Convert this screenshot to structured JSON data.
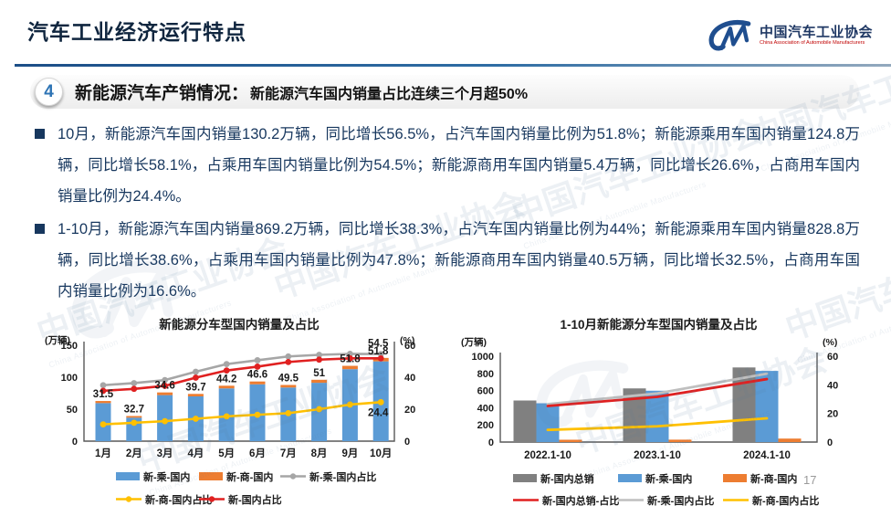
{
  "header": {
    "title": "汽车工业经济运行特点",
    "logo": {
      "org_cn": "中国汽车工业协会",
      "org_en": "China Association of Automobile Manufacturers"
    }
  },
  "section": {
    "number": "4",
    "title": "新能源汽车产销情况：",
    "subtitle": "新能源汽车国内销量占比连续三个月超50%"
  },
  "bullets": [
    {
      "text": "10月，新能源汽车国内销量130.2万辆，同比增长56.5%，占汽车国内销量比例为51.8%；新能源乘用车国内销量124.8万辆，同比增长58.1%，占乘用车国内销量比例为54.5%；新能源商用车国内销量5.4万辆，同比增长26.6%，占商用车国内销量比例为24.4%。"
    },
    {
      "text": "1-10月，新能源汽车国内销量869.2万辆，同比增长38.3%，占汽车国内销量比例为44%；新能源乘用车国内销量828.8万辆，同比增长38.6%，占乘用车国内销量比例为47.8%；新能源商用车国内销量40.5万辆，同比增长32.5%，占商用车国内销量比例为16.6%。"
    }
  ],
  "page_number": "17",
  "watermark": {
    "text_cn": "中国汽车工业协会",
    "text_en": "China Association of Automobile Manufacturers"
  },
  "colors": {
    "accent_blue": "#2E74B5",
    "navy_text": "#17375E",
    "bar_blue": "#5B9BD5",
    "bar_orange": "#ED7D31",
    "bar_gray": "#808080",
    "line_red": "#E02020",
    "line_gray": "#A6A6A6",
    "line_yellow": "#FFC000"
  },
  "chart_data": [
    {
      "id": "monthly",
      "type": "bar+line",
      "title": "新能源分车型国内销量及占比",
      "unit_left": "(万辆)",
      "unit_right": "(%)",
      "categories": [
        "1月",
        "2月",
        "3月",
        "4月",
        "5月",
        "6月",
        "7月",
        "8月",
        "9月",
        "10月"
      ],
      "left_axis": {
        "max": 150,
        "ticks": [
          0,
          50,
          100,
          150
        ]
      },
      "right_axis": {
        "max": 60,
        "ticks": [
          0,
          20,
          40,
          60
        ]
      },
      "bar_mode": "stacked",
      "bar_series": [
        {
          "name": "新-乘-国内",
          "color": "#5B9BD5",
          "values": [
            59.5,
            36.7,
            72,
            70,
            82.5,
            88.9,
            83.9,
            91.3,
            112.6,
            124.8
          ]
        },
        {
          "name": "新-商-国内",
          "color": "#ED7D31",
          "values": [
            3.3,
            2.6,
            4.2,
            3.9,
            4.2,
            4.4,
            4.0,
            4.7,
            5.2,
            5.4
          ]
        }
      ],
      "line_series": [
        {
          "name": "新-乘-国内占比",
          "color": "#A6A6A6",
          "values": [
            35,
            36.3,
            38.2,
            43.4,
            48.2,
            50.6,
            53,
            54,
            54.6,
            54.5
          ],
          "point_labels": [
            null,
            null,
            null,
            null,
            null,
            null,
            null,
            null,
            null,
            "54.5"
          ],
          "label_pos": "above"
        },
        {
          "name": "新-商-国内占比",
          "color": "#FFC000",
          "values": [
            10.5,
            11.5,
            12.5,
            14,
            15.5,
            16.5,
            17.5,
            20,
            22.9,
            24.4
          ],
          "point_labels": [
            null,
            null,
            null,
            null,
            null,
            null,
            null,
            null,
            null,
            "24.4"
          ],
          "label_pos": "below"
        },
        {
          "name": "新-国内占比",
          "color": "#E02020",
          "values": [
            31.5,
            32.7,
            34.6,
            39.7,
            44.2,
            46.6,
            49.5,
            51,
            51.8,
            51.8
          ],
          "point_labels": [
            "31.5",
            "32.7",
            "34.6",
            "39.7",
            "44.2",
            "46.6",
            "49.5",
            "51",
            "51.8",
            "51.8"
          ],
          "label_pos": "bar_top"
        }
      ],
      "legend": [
        [
          "bar:0",
          "bar:1",
          "line:0"
        ],
        [
          "line:1",
          "line:2"
        ]
      ]
    },
    {
      "id": "ytd",
      "type": "bar+line",
      "title": "1-10月新能源分车型国内销量及占比",
      "unit_left": "(万辆)",
      "unit_right": "(%)",
      "categories": [
        "2022.1-10",
        "2023.1-10",
        "2024.1-10"
      ],
      "left_axis": {
        "max": 1000,
        "ticks": [
          0,
          200,
          400,
          600,
          800,
          1000
        ]
      },
      "right_axis": {
        "max": 60,
        "ticks": [
          0,
          20,
          40,
          60
        ]
      },
      "bar_mode": "grouped",
      "bar_series": [
        {
          "name": "新-国内总销",
          "color": "#808080",
          "values": [
            484,
            625,
            869.2
          ]
        },
        {
          "name": "新-乘-国内",
          "color": "#5B9BD5",
          "values": [
            452,
            598,
            828.8
          ]
        },
        {
          "name": "新-商-国内",
          "color": "#ED7D31",
          "values": [
            27,
            28,
            40.5
          ]
        }
      ],
      "line_series": [
        {
          "name": "新-乘-国内占比",
          "color": "#BFBFBF",
          "values": [
            26.5,
            34,
            47.8
          ]
        },
        {
          "name": "新-商-国内占比",
          "color": "#FFC000",
          "values": [
            8.5,
            11,
            16.6
          ]
        },
        {
          "name": "新-国内总销-占比",
          "color": "#E02020",
          "values": [
            25.2,
            31.6,
            44
          ]
        }
      ],
      "legend": [
        [
          "bar:0",
          "bar:1",
          "bar:2"
        ],
        [
          "line:2",
          "line:0",
          "line:1"
        ]
      ]
    }
  ]
}
